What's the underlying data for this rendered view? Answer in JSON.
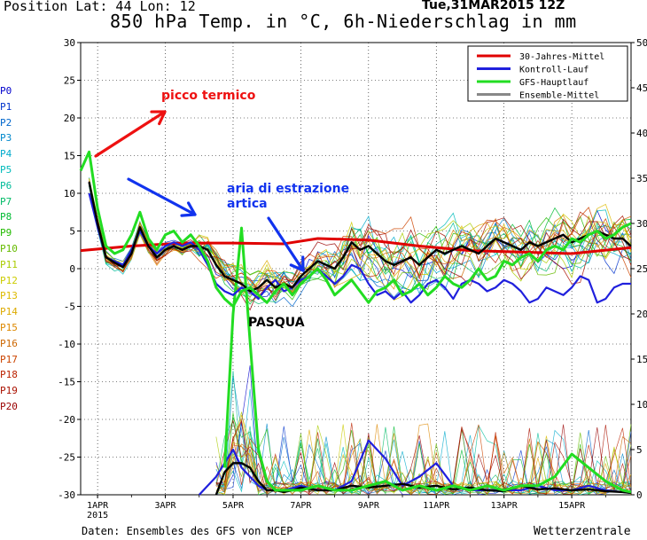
{
  "header": {
    "position_label": "Position  Lat: 44 Lon: 12",
    "date": "Tue,31MAR2015 12Z",
    "title": "850 hPa Temp. in °C, 6h-Niederschlag in mm"
  },
  "footer": {
    "source": "Daten: Ensembles des GFS von NCEP",
    "credit": "Wetterzentrale"
  },
  "members": [
    "P0",
    "P1",
    "P2",
    "P3",
    "P4",
    "P5",
    "P6",
    "P7",
    "P8",
    "P9",
    "P10",
    "P11",
    "P12",
    "P13",
    "P14",
    "P15",
    "P16",
    "P17",
    "P18",
    "P19",
    "P20"
  ],
  "member_colors": [
    "#0000cc",
    "#0033cc",
    "#0066cc",
    "#0088cc",
    "#00aacc",
    "#00bbbb",
    "#00bb99",
    "#00bb66",
    "#00bb33",
    "#22bb00",
    "#66bb00",
    "#aacc00",
    "#cccc00",
    "#ddbb00",
    "#ddaa00",
    "#dd8800",
    "#cc6600",
    "#cc4400",
    "#bb2200",
    "#aa1100",
    "#990000"
  ],
  "legend": [
    {
      "label": "30-Jahres-Mittel",
      "color": "#e00000"
    },
    {
      "label": "Kontroll-Lauf",
      "color": "#2020dd"
    },
    {
      "label": "GFS-Hauptlauf",
      "color": "#22dd22"
    },
    {
      "label": "Ensemble-Mittel",
      "color": "#888888"
    }
  ],
  "annotations": {
    "peak": "picco termico",
    "arctic_1": "aria di estrazione",
    "arctic_2": "artica",
    "easter": "PASQUA"
  },
  "annotation_colors": {
    "peak": "#ee1111",
    "arctic": "#1133ee",
    "easter": "#000000"
  },
  "chart_data": {
    "type": "line",
    "title": "850 hPa Temp. in °C, 6h-Niederschlag in mm",
    "x_tick_labels": [
      "1APR",
      "3APR",
      "5APR",
      "7APR",
      "9APR",
      "11APR",
      "13APR",
      "15APR"
    ],
    "x_year_label": "2015",
    "x_range_days": [
      0.5,
      16.75
    ],
    "y_left": {
      "label": "",
      "range": [
        -30,
        30
      ],
      "ticks": [
        -30,
        -25,
        -20,
        -15,
        -10,
        -5,
        0,
        5,
        10,
        15,
        20,
        25,
        30
      ]
    },
    "y_right": {
      "label": "",
      "range": [
        0,
        50
      ],
      "ticks": [
        0,
        5,
        10,
        15,
        20,
        25,
        30,
        35,
        40,
        45,
        50
      ]
    },
    "grid": "dotted",
    "legend_position": "top-right",
    "temperature_series": [
      {
        "name": "30-Jahres-Mittel",
        "x": [
          0.5,
          2.0,
          3.5,
          5.0,
          6.5,
          7.5,
          9.0,
          10.5,
          12.0,
          13.5,
          15.0,
          16.75
        ],
        "y": [
          2.4,
          3.0,
          3.4,
          3.4,
          3.3,
          4.0,
          3.8,
          3.0,
          2.4,
          2.2,
          2.0,
          2.8
        ]
      },
      {
        "name": "Ensemble-Mittel",
        "x": [
          0.75,
          1.0,
          1.25,
          1.5,
          1.75,
          2.0,
          2.25,
          2.5,
          2.75,
          3.0,
          3.25,
          3.5,
          3.75,
          4.0,
          4.25,
          4.5,
          4.75,
          5.0,
          5.25,
          5.5,
          5.75,
          6.0,
          6.25,
          6.5,
          6.75,
          7.0,
          7.25,
          7.5,
          7.75,
          8.0,
          8.25,
          8.5,
          8.75,
          9.0,
          9.25,
          9.5,
          9.75,
          10.0,
          10.25,
          10.5,
          10.75,
          11.0,
          11.25,
          11.5,
          11.75,
          12.0,
          12.25,
          12.5,
          12.75,
          13.0,
          13.25,
          13.5,
          13.75,
          14.0,
          14.25,
          14.5,
          14.75,
          15.0,
          15.25,
          15.5,
          15.75,
          16.0,
          16.25,
          16.5,
          16.75
        ],
        "y": [
          11.5,
          6.0,
          1.5,
          0.8,
          0.2,
          2.0,
          5.5,
          3.0,
          1.5,
          2.5,
          3.0,
          2.5,
          3.0,
          3.0,
          2.5,
          0.5,
          -1.0,
          -1.5,
          -2.0,
          -3.0,
          -2.5,
          -1.5,
          -2.5,
          -2.0,
          -2.5,
          -1.0,
          0.0,
          1.0,
          0.5,
          0.0,
          1.5,
          3.5,
          2.5,
          3.0,
          2.0,
          1.0,
          0.5,
          1.0,
          1.5,
          0.5,
          1.5,
          2.5,
          2.0,
          2.5,
          3.0,
          2.5,
          2.0,
          3.0,
          4.0,
          3.5,
          3.0,
          2.5,
          3.5,
          3.0,
          3.5,
          4.0,
          4.5,
          3.5,
          4.0,
          4.5,
          5.0,
          4.5,
          4.0,
          4.0,
          3.0
        ]
      },
      {
        "name": "Kontroll-Lauf",
        "x": [
          0.75,
          1.0,
          1.25,
          1.5,
          1.75,
          2.0,
          2.25,
          2.5,
          2.75,
          3.0,
          3.25,
          3.5,
          3.75,
          4.0,
          4.25,
          4.5,
          4.75,
          5.0,
          5.25,
          5.5,
          5.75,
          6.0,
          6.25,
          6.5,
          6.75,
          7.0,
          7.25,
          7.5,
          7.75,
          8.0,
          8.25,
          8.5,
          8.75,
          9.0,
          9.25,
          9.5,
          9.75,
          10.0,
          10.25,
          10.5,
          10.75,
          11.0,
          11.25,
          11.5,
          11.75,
          12.0,
          12.25,
          12.5,
          12.75,
          13.0,
          13.25,
          13.5,
          13.75,
          14.0,
          14.25,
          14.5,
          14.75,
          15.0,
          15.25,
          15.5,
          15.75,
          16.0,
          16.25,
          16.5,
          16.75
        ],
        "y": [
          10.0,
          5.5,
          1.5,
          1.0,
          0.5,
          2.5,
          5.0,
          3.0,
          2.0,
          3.0,
          3.5,
          3.0,
          3.5,
          2.5,
          0.5,
          -2.0,
          -3.0,
          -3.5,
          -2.5,
          -3.0,
          -4.0,
          -2.5,
          -1.5,
          -3.0,
          -2.5,
          -1.5,
          -1.0,
          0.0,
          -1.0,
          -2.0,
          -1.0,
          0.5,
          0.0,
          -2.0,
          -3.5,
          -3.0,
          -4.0,
          -3.0,
          -4.5,
          -3.5,
          -2.0,
          -1.5,
          -2.5,
          -4.0,
          -2.0,
          -1.5,
          -2.0,
          -3.0,
          -2.5,
          -1.5,
          -2.0,
          -3.0,
          -4.5,
          -4.0,
          -2.5,
          -3.0,
          -3.5,
          -2.5,
          -1.0,
          -1.5,
          -4.5,
          -4.0,
          -2.5,
          -2.0,
          -2.0
        ]
      },
      {
        "name": "GFS-Hauptlauf",
        "x": [
          0.5,
          0.75,
          1.0,
          1.25,
          1.5,
          1.75,
          2.0,
          2.25,
          2.5,
          2.75,
          3.0,
          3.25,
          3.5,
          3.75,
          4.0,
          4.25,
          4.5,
          4.75,
          5.0,
          5.25,
          5.5,
          5.75,
          6.0,
          6.25,
          6.5,
          6.75,
          7.0,
          7.25,
          7.5,
          7.75,
          8.0,
          8.25,
          8.5,
          8.75,
          9.0,
          9.25,
          9.5,
          9.75,
          10.0,
          10.25,
          10.5,
          10.75,
          11.0,
          11.25,
          11.5,
          11.75,
          12.0,
          12.25,
          12.5,
          12.75,
          13.0,
          13.25,
          13.5,
          13.75,
          14.0,
          14.25,
          14.5,
          14.75,
          15.0,
          15.25,
          15.5,
          15.75,
          16.0,
          16.25,
          16.5,
          16.75
        ],
        "y": [
          13.0,
          15.5,
          8.0,
          3.0,
          2.0,
          2.5,
          4.5,
          7.5,
          4.0,
          2.5,
          4.5,
          5.0,
          3.5,
          4.5,
          3.0,
          1.0,
          -2.5,
          -4.0,
          -5.0,
          -3.0,
          -2.5,
          -3.5,
          -4.5,
          -3.0,
          -2.0,
          -3.5,
          -2.0,
          -1.0,
          0.0,
          -1.5,
          -3.5,
          -2.5,
          -1.5,
          -3.0,
          -4.5,
          -3.0,
          -2.5,
          -1.5,
          -3.5,
          -3.0,
          -2.0,
          -3.5,
          -2.5,
          -1.0,
          -2.0,
          -2.5,
          -1.5,
          0.0,
          -1.5,
          -1.0,
          1.0,
          0.5,
          1.5,
          2.0,
          1.0,
          2.5,
          3.0,
          2.5,
          4.0,
          3.5,
          4.5,
          5.0,
          4.0,
          4.5,
          5.5,
          6.0
        ]
      }
    ],
    "precip_series": [
      {
        "name": "Ensemble-Mittel",
        "x": [
          4.5,
          4.75,
          5.0,
          5.25,
          5.5,
          5.75,
          6.0,
          6.25,
          6.5,
          6.75,
          7.0,
          7.5,
          8.0,
          8.5,
          9.0,
          9.5,
          10.0,
          10.5,
          11.0,
          11.5,
          12.0,
          12.5,
          13.0,
          13.5,
          14.0,
          14.5,
          15.0,
          15.5,
          16.0,
          16.5,
          16.75
        ],
        "y": [
          0.0,
          2.5,
          3.5,
          3.5,
          3.0,
          1.5,
          0.5,
          0.5,
          0.3,
          0.5,
          0.8,
          0.5,
          0.5,
          1.0,
          0.8,
          1.0,
          1.2,
          0.8,
          1.0,
          0.6,
          0.8,
          0.5,
          0.4,
          1.0,
          0.6,
          0.7,
          0.5,
          0.6,
          0.4,
          0.3,
          0.2
        ]
      },
      {
        "name": "Kontroll-Lauf",
        "x": [
          4.0,
          4.5,
          5.0,
          5.25,
          5.5,
          5.75,
          6.0,
          6.5,
          7.0,
          7.5,
          8.0,
          8.5,
          9.0,
          9.5,
          10.0,
          10.5,
          11.0,
          11.5,
          12.0,
          12.5,
          13.0,
          13.5,
          14.0,
          14.5,
          15.0,
          15.5,
          16.0,
          16.5,
          16.75
        ],
        "y": [
          0.0,
          2.0,
          5.0,
          3.0,
          2.0,
          1.0,
          0.5,
          0.5,
          1.0,
          0.5,
          0.5,
          1.5,
          6.0,
          4.0,
          1.0,
          2.0,
          3.5,
          1.0,
          0.5,
          0.5,
          0.5,
          0.5,
          1.0,
          0.5,
          0.5,
          1.0,
          0.5,
          0.3,
          0.2
        ]
      },
      {
        "name": "GFS-Hauptlauf",
        "x": [
          4.75,
          5.0,
          5.25,
          5.5,
          5.75,
          6.0,
          6.25,
          6.5,
          7.0,
          7.5,
          8.0,
          8.5,
          9.0,
          9.5,
          10.0,
          10.5,
          11.0,
          11.5,
          12.0,
          12.5,
          13.0,
          13.5,
          14.0,
          14.5,
          15.0,
          15.5,
          16.0,
          16.5,
          16.75
        ],
        "y": [
          3.0,
          20.0,
          29.5,
          17.0,
          5.0,
          1.5,
          0.5,
          0.5,
          0.5,
          1.0,
          0.5,
          0.5,
          1.0,
          1.5,
          0.5,
          1.0,
          0.5,
          1.0,
          0.5,
          1.0,
          0.5,
          1.0,
          1.0,
          2.0,
          4.5,
          3.0,
          1.5,
          0.5,
          0.3
        ]
      }
    ]
  }
}
